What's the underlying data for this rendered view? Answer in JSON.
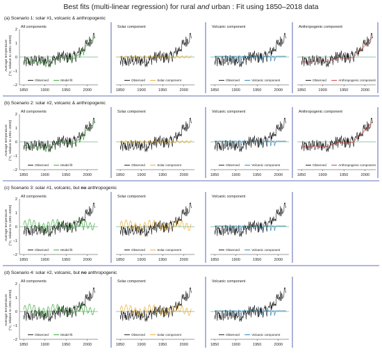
{
  "figure": {
    "title_parts": [
      "Best fits (multi-linear regression) for rural ",
      "and",
      " urban : Fit using 1850–2018 data"
    ]
  },
  "colors": {
    "observed": "#111111",
    "model_fit": "#2ca02c",
    "solar": "#e8a317",
    "volcanic": "#1f77b4",
    "anthropogenic": "#d62728",
    "zero_line": "#2e8b57",
    "separator": "#2a3f9d"
  },
  "chart_data": [
    {
      "label": "(a)",
      "title_parts": [
        "Scenario 1: solar #1, volcanic & anthropogenic"
      ],
      "panels": [
        {
          "title": "All components",
          "type": "line",
          "series": [
            {
              "name": "Observed",
              "role": "observed"
            },
            {
              "name": "Model fit",
              "role": "fit"
            }
          ]
        },
        {
          "title": "Solar component",
          "type": "line",
          "series": [
            {
              "name": "Observed",
              "role": "observed"
            },
            {
              "name": "Solar component",
              "role": "solar"
            }
          ]
        },
        {
          "title": "Volcanic component",
          "type": "line",
          "series": [
            {
              "name": "Observed",
              "role": "observed"
            },
            {
              "name": "Volcanic component",
              "role": "volcanic"
            }
          ]
        },
        {
          "title": "Anthropogenic component",
          "type": "line",
          "series": [
            {
              "name": "Observed",
              "role": "observed"
            },
            {
              "name": "Anthropogenic component",
              "role": "anthro"
            }
          ]
        }
      ]
    },
    {
      "label": "(b)",
      "title_parts": [
        "Scenario 2: solar #2, volcanic & anthropogenic"
      ],
      "panels": [
        {
          "title": "All components",
          "type": "line",
          "series": [
            {
              "name": "Observed",
              "role": "observed"
            },
            {
              "name": "Model fit",
              "role": "fit"
            }
          ]
        },
        {
          "title": "Solar component",
          "type": "line",
          "series": [
            {
              "name": "Observed",
              "role": "observed"
            },
            {
              "name": "Solar component",
              "role": "solar"
            }
          ]
        },
        {
          "title": "Volcanic component",
          "type": "line",
          "series": [
            {
              "name": "Observed",
              "role": "observed"
            },
            {
              "name": "Volcanic component",
              "role": "volcanic"
            }
          ]
        },
        {
          "title": "Anthropogenic component",
          "type": "line",
          "series": [
            {
              "name": "Observed",
              "role": "observed"
            },
            {
              "name": "Anthropogenic component",
              "role": "anthro"
            }
          ]
        }
      ]
    },
    {
      "label": "(c)",
      "title_parts": [
        "Scenario 3: solar #1, volcanic, but ",
        "no",
        " anthropogenic"
      ],
      "panels": [
        {
          "title": "All components",
          "type": "line",
          "series": [
            {
              "name": "Observed",
              "role": "observed"
            },
            {
              "name": "Model fit",
              "role": "fit_noanthro"
            }
          ]
        },
        {
          "title": "Solar component",
          "type": "line",
          "series": [
            {
              "name": "Observed",
              "role": "observed"
            },
            {
              "name": "Solar component",
              "role": "solar_big"
            }
          ]
        },
        {
          "title": "Volcanic component",
          "type": "line",
          "series": [
            {
              "name": "Observed",
              "role": "observed"
            },
            {
              "name": "Volcanic component",
              "role": "volcanic"
            }
          ]
        }
      ]
    },
    {
      "label": "(d)",
      "title_parts": [
        "Scenario 4: solar #2, volcanic, but ",
        "no",
        " anthropogenic"
      ],
      "panels": [
        {
          "title": "All components",
          "type": "line",
          "series": [
            {
              "name": "Observed",
              "role": "observed"
            },
            {
              "name": "Model fit",
              "role": "fit_noanthro"
            }
          ]
        },
        {
          "title": "Solar component",
          "type": "line",
          "series": [
            {
              "name": "Observed",
              "role": "observed"
            },
            {
              "name": "Solar component",
              "role": "solar_big"
            }
          ]
        },
        {
          "title": "Volcanic component",
          "type": "line",
          "series": [
            {
              "name": "Observed",
              "role": "observed"
            },
            {
              "name": "Volcanic component",
              "role": "volcanic"
            }
          ]
        }
      ]
    }
  ],
  "axes": {
    "ylabel_lines": [
      "Average temperature",
      "(°C, relative to 1901–2000)"
    ],
    "xlim": [
      1840,
      2025
    ],
    "ylim": [
      -2,
      2
    ],
    "xticks": [
      1850,
      1900,
      1950,
      2000
    ],
    "yticks": [
      -2,
      -1,
      0,
      1,
      2
    ],
    "xtick_labels": [
      "1850",
      "1900",
      "1950",
      "2000"
    ],
    "ytick_labels": [
      "−2",
      "−1",
      "0",
      "1",
      "2"
    ]
  },
  "observed_anchor": {
    "x": [
      1850,
      1860,
      1870,
      1880,
      1890,
      1900,
      1910,
      1920,
      1930,
      1940,
      1950,
      1960,
      1970,
      1980,
      1990,
      2000,
      2010,
      2018
    ],
    "y": [
      -0.4,
      -0.35,
      -0.3,
      -0.25,
      -0.3,
      -0.25,
      -0.3,
      -0.2,
      -0.05,
      0.05,
      -0.05,
      0.0,
      0.0,
      0.3,
      0.6,
      0.95,
      1.3,
      1.6
    ],
    "year_range": [
      1850,
      2018
    ]
  }
}
